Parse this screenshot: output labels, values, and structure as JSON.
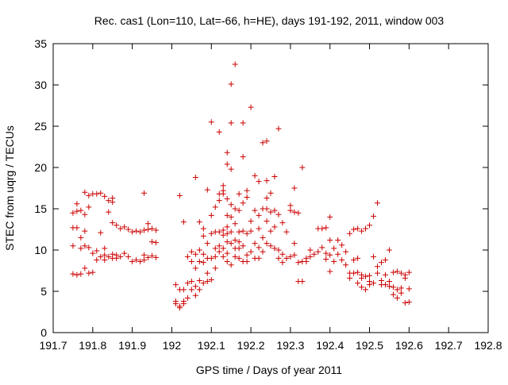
{
  "chart_data": {
    "type": "scatter",
    "title": "Rec. cas1 (Lon=110, Lat=-66, h=HE), days 191-192, 2011, window 003",
    "xlabel": "GPS time / Days of year 2011",
    "ylabel": "STEC from uqrg / TECUs",
    "xlim": [
      191.7,
      192.8
    ],
    "ylim": [
      0,
      35
    ],
    "xticks": [
      191.7,
      191.8,
      191.9,
      192.0,
      192.1,
      192.2,
      192.3,
      192.4,
      192.5,
      192.6,
      192.7,
      192.8
    ],
    "xtick_labels": [
      "191.7",
      "191.8",
      "191.9",
      "192",
      "192.1",
      "192.2",
      "192.3",
      "192.4",
      "192.5",
      "192.6",
      "192.7",
      "192.8"
    ],
    "yticks": [
      0,
      5,
      10,
      15,
      20,
      25,
      30,
      35
    ],
    "ytick_labels": [
      "0",
      "5",
      "10",
      "15",
      "20",
      "25",
      "30",
      "35"
    ],
    "grid": false,
    "marker": "+",
    "color": "#cc0000",
    "points": [
      [
        191.75,
        14.5
      ],
      [
        191.75,
        12.7
      ],
      [
        191.75,
        10.5
      ],
      [
        191.75,
        7.1
      ],
      [
        191.76,
        14.7
      ],
      [
        191.76,
        15.6
      ],
      [
        191.76,
        12.7
      ],
      [
        191.76,
        7.0
      ],
      [
        191.77,
        14.8
      ],
      [
        191.77,
        11.5
      ],
      [
        191.77,
        10.2
      ],
      [
        191.77,
        7.1
      ],
      [
        191.78,
        17.0
      ],
      [
        191.78,
        14.3
      ],
      [
        191.78,
        12.3
      ],
      [
        191.78,
        10.5
      ],
      [
        191.78,
        7.8
      ],
      [
        191.79,
        16.6
      ],
      [
        191.79,
        15.2
      ],
      [
        191.79,
        10.3
      ],
      [
        191.79,
        7.2
      ],
      [
        191.8,
        16.8
      ],
      [
        191.8,
        9.6
      ],
      [
        191.8,
        7.3
      ],
      [
        191.81,
        16.8
      ],
      [
        191.81,
        9.9
      ],
      [
        191.81,
        8.8
      ],
      [
        191.82,
        16.9
      ],
      [
        191.82,
        12.1
      ],
      [
        191.82,
        9.2
      ],
      [
        191.83,
        16.5
      ],
      [
        191.83,
        10.2
      ],
      [
        191.83,
        9.4
      ],
      [
        191.83,
        8.8
      ],
      [
        191.84,
        16.0
      ],
      [
        191.84,
        14.6
      ],
      [
        191.84,
        9.2
      ],
      [
        191.85,
        16.3
      ],
      [
        191.85,
        15.8
      ],
      [
        191.85,
        13.3
      ],
      [
        191.85,
        9.5
      ],
      [
        191.85,
        9.0
      ],
      [
        191.86,
        13.0
      ],
      [
        191.86,
        9.4
      ],
      [
        191.86,
        9.0
      ],
      [
        191.87,
        12.6
      ],
      [
        191.87,
        9.2
      ],
      [
        191.88,
        12.8
      ],
      [
        191.88,
        9.6
      ],
      [
        191.89,
        12.5
      ],
      [
        191.89,
        9.2
      ],
      [
        191.9,
        12.2
      ],
      [
        191.9,
        8.6
      ],
      [
        191.91,
        12.3
      ],
      [
        191.91,
        8.8
      ],
      [
        191.92,
        12.2
      ],
      [
        191.92,
        8.6
      ],
      [
        191.93,
        16.9
      ],
      [
        191.93,
        12.4
      ],
      [
        191.93,
        9.4
      ],
      [
        191.93,
        8.8
      ],
      [
        191.94,
        13.2
      ],
      [
        191.94,
        12.5
      ],
      [
        191.94,
        9.1
      ],
      [
        191.95,
        12.6
      ],
      [
        191.95,
        11.0
      ],
      [
        191.95,
        9.3
      ],
      [
        191.96,
        12.4
      ],
      [
        191.96,
        10.9
      ],
      [
        191.96,
        9.1
      ],
      [
        192.01,
        5.8
      ],
      [
        192.01,
        3.8
      ],
      [
        192.01,
        3.5
      ],
      [
        192.02,
        16.6
      ],
      [
        192.02,
        5.2
      ],
      [
        192.02,
        3.2
      ],
      [
        192.02,
        3.0
      ],
      [
        192.03,
        13.4
      ],
      [
        192.03,
        5.2
      ],
      [
        192.03,
        3.8
      ],
      [
        192.03,
        3.5
      ],
      [
        192.04,
        9.2
      ],
      [
        192.04,
        6.0
      ],
      [
        192.04,
        4.2
      ],
      [
        192.05,
        9.8
      ],
      [
        192.05,
        8.6
      ],
      [
        192.05,
        6.2
      ],
      [
        192.05,
        5.2
      ],
      [
        192.06,
        18.8
      ],
      [
        192.06,
        9.5
      ],
      [
        192.06,
        7.8
      ],
      [
        192.06,
        5.6
      ],
      [
        192.06,
        4.5
      ],
      [
        192.07,
        13.4
      ],
      [
        192.07,
        10.0
      ],
      [
        192.07,
        8.6
      ],
      [
        192.07,
        6.3
      ],
      [
        192.07,
        5.2
      ],
      [
        192.08,
        12.6
      ],
      [
        192.08,
        11.7
      ],
      [
        192.08,
        9.5
      ],
      [
        192.08,
        8.5
      ],
      [
        192.08,
        6.0
      ],
      [
        192.09,
        17.3
      ],
      [
        192.09,
        10.8
      ],
      [
        192.09,
        9.0
      ],
      [
        192.09,
        7.2
      ],
      [
        192.09,
        6.2
      ],
      [
        192.1,
        25.5
      ],
      [
        192.1,
        14.2
      ],
      [
        192.1,
        12.0
      ],
      [
        192.1,
        9.0
      ],
      [
        192.1,
        6.4
      ],
      [
        192.11,
        15.2
      ],
      [
        192.11,
        12.2
      ],
      [
        192.11,
        10.2
      ],
      [
        192.11,
        9.2
      ],
      [
        192.11,
        7.8
      ],
      [
        192.12,
        24.3
      ],
      [
        192.12,
        16.8
      ],
      [
        192.12,
        16.0
      ],
      [
        192.12,
        12.2
      ],
      [
        192.12,
        10.5
      ],
      [
        192.12,
        9.8
      ],
      [
        192.13,
        17.8
      ],
      [
        192.13,
        17.2
      ],
      [
        192.13,
        16.8
      ],
      [
        192.13,
        12.4
      ],
      [
        192.13,
        11.8
      ],
      [
        192.13,
        10.2
      ],
      [
        192.13,
        9.2
      ],
      [
        192.14,
        21.8
      ],
      [
        192.14,
        20.4
      ],
      [
        192.14,
        16.2
      ],
      [
        192.14,
        14.2
      ],
      [
        192.14,
        12.8
      ],
      [
        192.14,
        12.0
      ],
      [
        192.14,
        11.0
      ],
      [
        192.14,
        9.6
      ],
      [
        192.14,
        8.6
      ],
      [
        192.15,
        30.1
      ],
      [
        192.15,
        25.4
      ],
      [
        192.15,
        19.8
      ],
      [
        192.15,
        15.5
      ],
      [
        192.15,
        14.0
      ],
      [
        192.15,
        12.2
      ],
      [
        192.15,
        10.8
      ],
      [
        192.15,
        8.2
      ],
      [
        192.16,
        32.5
      ],
      [
        192.16,
        15.0
      ],
      [
        192.16,
        13.2
      ],
      [
        192.16,
        11.2
      ],
      [
        192.16,
        10.2
      ],
      [
        192.16,
        9.2
      ],
      [
        192.17,
        16.8
      ],
      [
        192.17,
        14.8
      ],
      [
        192.17,
        12.2
      ],
      [
        192.17,
        11.0
      ],
      [
        192.17,
        10.2
      ],
      [
        192.17,
        9.0
      ],
      [
        192.18,
        25.4
      ],
      [
        192.18,
        21.3
      ],
      [
        192.18,
        15.7
      ],
      [
        192.18,
        12.3
      ],
      [
        192.18,
        10.5
      ],
      [
        192.18,
        8.6
      ],
      [
        192.19,
        17.2
      ],
      [
        192.19,
        16.4
      ],
      [
        192.19,
        12.0
      ],
      [
        192.19,
        9.4
      ],
      [
        192.19,
        8.6
      ],
      [
        192.2,
        27.3
      ],
      [
        192.2,
        13.5
      ],
      [
        192.2,
        12.3
      ],
      [
        192.2,
        9.8
      ],
      [
        192.21,
        19.0
      ],
      [
        192.21,
        14.8
      ],
      [
        192.21,
        10.8
      ],
      [
        192.21,
        9.0
      ],
      [
        192.22,
        18.3
      ],
      [
        192.22,
        14.2
      ],
      [
        192.22,
        12.6
      ],
      [
        192.22,
        10.3
      ],
      [
        192.22,
        9.0
      ],
      [
        192.23,
        23.0
      ],
      [
        192.23,
        15.0
      ],
      [
        192.23,
        11.5
      ],
      [
        192.23,
        9.8
      ],
      [
        192.24,
        23.2
      ],
      [
        192.24,
        18.4
      ],
      [
        192.24,
        16.3
      ],
      [
        192.24,
        15.0
      ],
      [
        192.24,
        13.5
      ],
      [
        192.24,
        10.8
      ],
      [
        192.25,
        16.9
      ],
      [
        192.25,
        14.6
      ],
      [
        192.25,
        12.3
      ],
      [
        192.25,
        10.5
      ],
      [
        192.26,
        18.9
      ],
      [
        192.26,
        14.8
      ],
      [
        192.26,
        12.8
      ],
      [
        192.26,
        10.2
      ],
      [
        192.27,
        24.7
      ],
      [
        192.27,
        14.3
      ],
      [
        192.27,
        10.0
      ],
      [
        192.27,
        9.0
      ],
      [
        192.28,
        13.3
      ],
      [
        192.28,
        9.5
      ],
      [
        192.28,
        8.5
      ],
      [
        192.29,
        12.2
      ],
      [
        192.29,
        9.0
      ],
      [
        192.3,
        15.4
      ],
      [
        192.3,
        14.8
      ],
      [
        192.3,
        9.2
      ],
      [
        192.31,
        17.5
      ],
      [
        192.31,
        14.6
      ],
      [
        192.31,
        10.8
      ],
      [
        192.31,
        9.4
      ],
      [
        192.32,
        14.5
      ],
      [
        192.32,
        6.2
      ],
      [
        192.32,
        8.5
      ],
      [
        192.33,
        20.0
      ],
      [
        192.33,
        6.2
      ],
      [
        192.33,
        8.6
      ],
      [
        192.34,
        9.0
      ],
      [
        192.34,
        8.6
      ],
      [
        192.35,
        10.0
      ],
      [
        192.35,
        9.2
      ],
      [
        192.36,
        9.5
      ],
      [
        192.37,
        12.6
      ],
      [
        192.37,
        9.8
      ],
      [
        192.38,
        12.6
      ],
      [
        192.38,
        10.3
      ],
      [
        192.39,
        12.7
      ],
      [
        192.39,
        9.6
      ],
      [
        192.39,
        8.9
      ],
      [
        192.4,
        14.0
      ],
      [
        192.4,
        11.2
      ],
      [
        192.4,
        9.4
      ],
      [
        192.4,
        7.4
      ],
      [
        192.41,
        10.2
      ],
      [
        192.41,
        8.6
      ],
      [
        192.42,
        11.2
      ],
      [
        192.42,
        9.5
      ],
      [
        192.43,
        10.6
      ],
      [
        192.43,
        8.8
      ],
      [
        192.44,
        9.8
      ],
      [
        192.44,
        8.2
      ],
      [
        192.45,
        12.0
      ],
      [
        192.45,
        7.2
      ],
      [
        192.45,
        6.6
      ],
      [
        192.46,
        12.5
      ],
      [
        192.46,
        8.8
      ],
      [
        192.46,
        7.2
      ],
      [
        192.47,
        12.6
      ],
      [
        192.47,
        9.0
      ],
      [
        192.47,
        7.3
      ],
      [
        192.47,
        6.0
      ],
      [
        192.48,
        12.3
      ],
      [
        192.48,
        7.0
      ],
      [
        192.48,
        6.6
      ],
      [
        192.48,
        5.5
      ],
      [
        192.49,
        12.6
      ],
      [
        192.49,
        6.8
      ],
      [
        192.49,
        5.2
      ],
      [
        192.5,
        13.0
      ],
      [
        192.5,
        6.9
      ],
      [
        192.5,
        6.2
      ],
      [
        192.5,
        5.8
      ],
      [
        192.51,
        14.1
      ],
      [
        192.51,
        9.2
      ],
      [
        192.51,
        6.0
      ],
      [
        192.52,
        15.7
      ],
      [
        192.52,
        8.0
      ],
      [
        192.52,
        7.2
      ],
      [
        192.53,
        8.5
      ],
      [
        192.53,
        6.3
      ],
      [
        192.53,
        5.8
      ],
      [
        192.54,
        8.8
      ],
      [
        192.54,
        7.0
      ],
      [
        192.54,
        5.8
      ],
      [
        192.55,
        10.0
      ],
      [
        192.55,
        6.2
      ],
      [
        192.55,
        5.6
      ],
      [
        192.56,
        7.3
      ],
      [
        192.56,
        5.5
      ],
      [
        192.56,
        4.6
      ],
      [
        192.57,
        7.4
      ],
      [
        192.57,
        5.2
      ],
      [
        192.57,
        4.2
      ],
      [
        192.58,
        7.2
      ],
      [
        192.58,
        5.4
      ],
      [
        192.58,
        4.8
      ],
      [
        192.59,
        7.0
      ],
      [
        192.59,
        6.6
      ],
      [
        192.59,
        3.6
      ],
      [
        192.6,
        7.3
      ],
      [
        192.6,
        5.3
      ],
      [
        192.6,
        3.7
      ]
    ]
  }
}
